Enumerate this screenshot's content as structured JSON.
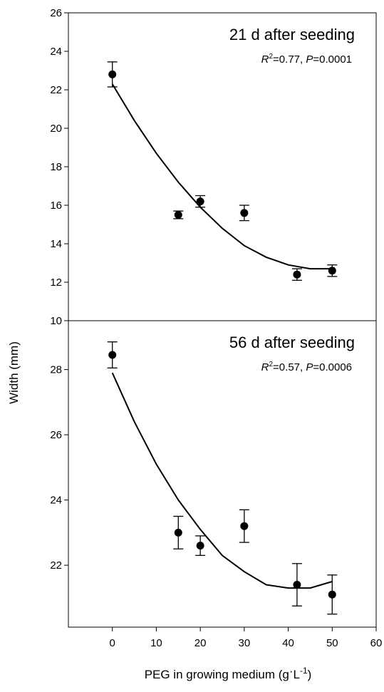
{
  "chart_data": [
    {
      "type": "scatter",
      "title": "21 d after seeding",
      "stat": {
        "r_label": "R",
        "r_sup": "2",
        "r_value": "=0.77, ",
        "p_label": "P",
        "p_value": "=0.0001"
      },
      "x": [
        0,
        15,
        20,
        30,
        42,
        50
      ],
      "y": [
        22.8,
        15.5,
        16.2,
        15.6,
        12.4,
        12.6
      ],
      "error": [
        0.65,
        0.2,
        0.3,
        0.4,
        0.3,
        0.3
      ],
      "fit": {
        "type": "quadratic",
        "x": [
          0,
          5,
          10,
          15,
          20,
          25,
          30,
          35,
          40,
          45,
          50
        ],
        "y": [
          22.3,
          20.4,
          18.7,
          17.2,
          15.9,
          14.8,
          13.9,
          13.3,
          12.9,
          12.7,
          12.7
        ]
      },
      "xlim": [
        -10,
        60
      ],
      "ylim": [
        10,
        26
      ],
      "yticks": [
        10,
        12,
        14,
        16,
        18,
        20,
        22,
        24,
        26
      ]
    },
    {
      "type": "scatter",
      "title": "56 d after seeding",
      "stat": {
        "r_label": "R",
        "r_sup": "2",
        "r_value": "=0.57, ",
        "p_label": "P",
        "p_value": "=0.0006"
      },
      "x": [
        0,
        15,
        20,
        30,
        42,
        50
      ],
      "y": [
        28.45,
        23.0,
        22.6,
        23.2,
        21.4,
        21.1
      ],
      "error": [
        0.4,
        0.5,
        0.3,
        0.5,
        0.65,
        0.6
      ],
      "fit": {
        "type": "quadratic",
        "x": [
          0,
          5,
          10,
          15,
          20,
          25,
          30,
          35,
          40,
          45,
          50
        ],
        "y": [
          27.9,
          26.4,
          25.1,
          24.0,
          23.1,
          22.3,
          21.8,
          21.4,
          21.3,
          21.3,
          21.5
        ]
      },
      "xlim": [
        -10,
        60
      ],
      "ylim": [
        20.1,
        29.5
      ],
      "yticks": [
        22,
        24,
        26,
        28
      ]
    }
  ],
  "axes": {
    "xticks": [
      0,
      10,
      20,
      30,
      40,
      50,
      60
    ],
    "ylabel": "Width (mm)",
    "xlabel_main": "PEG in growing medium (g",
    "xlabel_dot": "·",
    "xlabel_unit": "L",
    "xlabel_sup": "-1",
    "xlabel_close": ")"
  }
}
